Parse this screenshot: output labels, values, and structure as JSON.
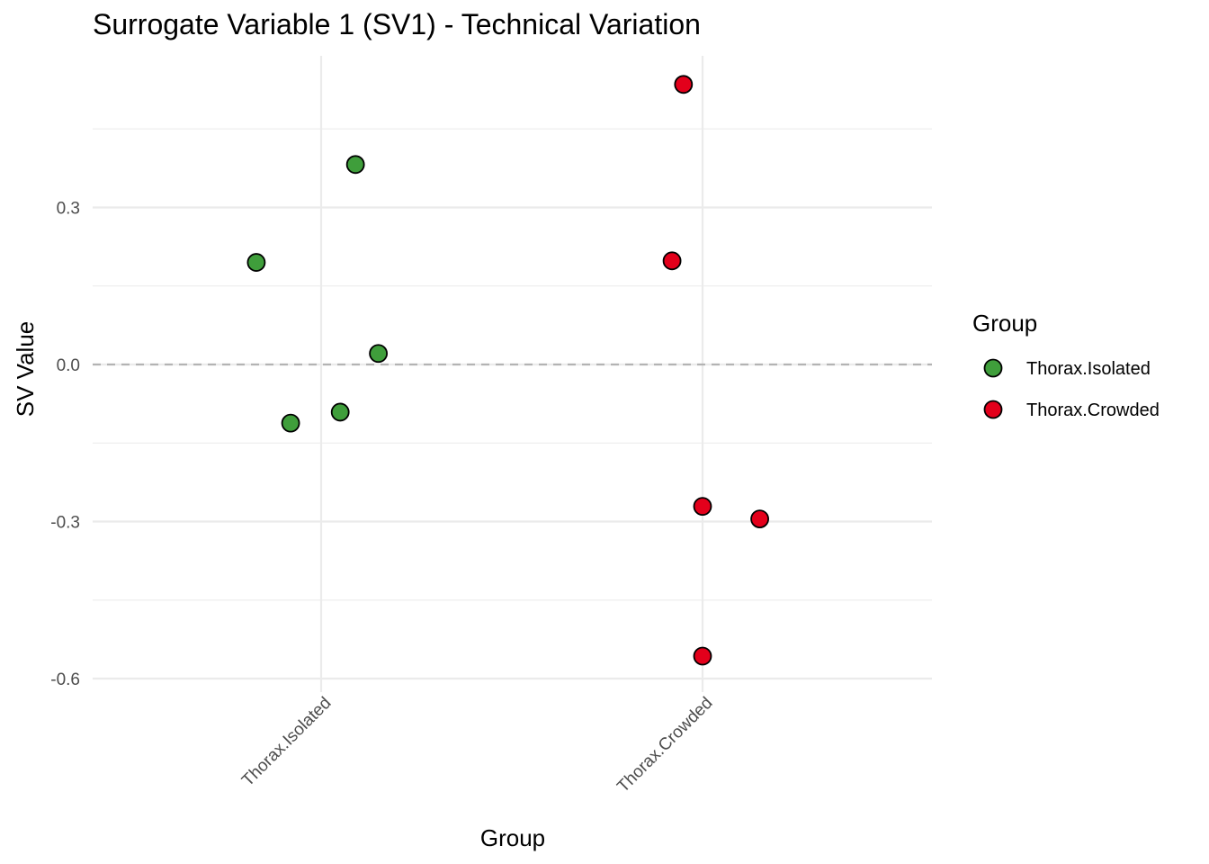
{
  "chart_data": {
    "type": "scatter",
    "title": "Surrogate Variable 1 (SV1) - Technical Variation",
    "xlabel": "Group",
    "ylabel": "SV Value",
    "categories": [
      "Thorax.Isolated",
      "Thorax.Crowded"
    ],
    "ylim": [
      -0.6,
      0.57
    ],
    "yticks": [
      -0.6,
      -0.3,
      0.0,
      0.3
    ],
    "ytick_labels": [
      "-0.6",
      "-0.3",
      "0.0",
      "0.3"
    ],
    "reference_line": {
      "y": 0,
      "style": "dashed"
    },
    "grid": true,
    "legend": {
      "title": "Group",
      "position": "right"
    },
    "series": [
      {
        "name": "Thorax.Isolated",
        "color": "#3f9e3b",
        "points": [
          {
            "category": "Thorax.Isolated",
            "jitter": -0.17,
            "y": 0.195
          },
          {
            "category": "Thorax.Isolated",
            "jitter": 0.09,
            "y": 0.382
          },
          {
            "category": "Thorax.Isolated",
            "jitter": 0.15,
            "y": 0.021
          },
          {
            "category": "Thorax.Isolated",
            "jitter": -0.08,
            "y": -0.112
          },
          {
            "category": "Thorax.Isolated",
            "jitter": 0.05,
            "y": -0.091
          }
        ]
      },
      {
        "name": "Thorax.Crowded",
        "color": "#e3001b",
        "points": [
          {
            "category": "Thorax.Crowded",
            "jitter": -0.05,
            "y": 0.535
          },
          {
            "category": "Thorax.Crowded",
            "jitter": -0.08,
            "y": 0.198
          },
          {
            "category": "Thorax.Crowded",
            "jitter": 0.0,
            "y": -0.271
          },
          {
            "category": "Thorax.Crowded",
            "jitter": 0.15,
            "y": -0.295
          },
          {
            "category": "Thorax.Crowded",
            "jitter": 0.0,
            "y": -0.557
          }
        ]
      }
    ]
  }
}
